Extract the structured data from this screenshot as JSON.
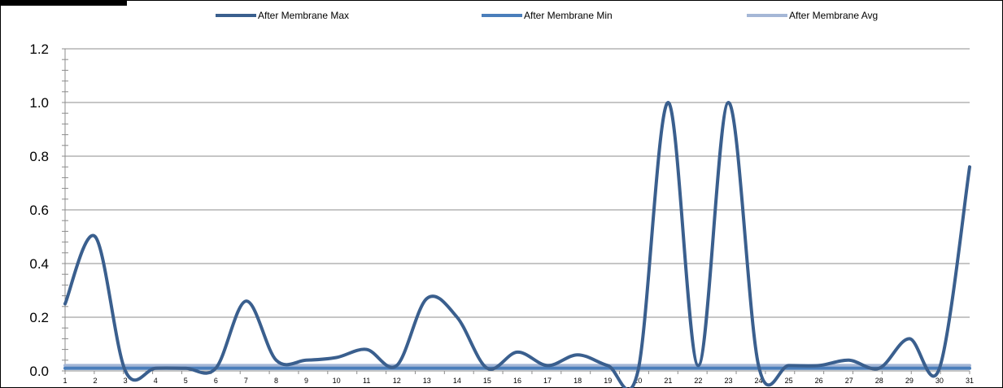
{
  "chart_data": {
    "type": "line",
    "title": "",
    "xlabel": "",
    "ylabel": "",
    "ylim": [
      0,
      1.2
    ],
    "yticks": [
      "0.0",
      "0.2",
      "0.4",
      "0.6",
      "0.8",
      "1.0",
      "1.2"
    ],
    "categories": [
      "1",
      "2",
      "3",
      "4",
      "5",
      "6",
      "7",
      "8",
      "9",
      "10",
      "11",
      "12",
      "13",
      "14",
      "15",
      "16",
      "17",
      "18",
      "19",
      "20",
      "21",
      "22",
      "23",
      "24",
      "25",
      "26",
      "27",
      "28",
      "29",
      "30",
      "31"
    ],
    "grid": true,
    "legend_position": "top",
    "series": [
      {
        "name": "After Membrane Max",
        "color": "#3A5F8E",
        "values": [
          0.25,
          0.5,
          0.0,
          0.01,
          0.01,
          0.01,
          0.26,
          0.04,
          0.04,
          0.05,
          0.08,
          0.02,
          0.27,
          0.2,
          0.01,
          0.07,
          0.02,
          0.06,
          0.02,
          0.0,
          1.0,
          0.02,
          1.0,
          0.02,
          0.02,
          0.02,
          0.04,
          0.01,
          0.12,
          0.01,
          0.76
        ]
      },
      {
        "name": "After Membrane Min",
        "color": "#4A7EBB",
        "values": [
          0.01,
          0.01,
          0.01,
          0.01,
          0.01,
          0.01,
          0.01,
          0.01,
          0.01,
          0.01,
          0.01,
          0.01,
          0.01,
          0.01,
          0.01,
          0.01,
          0.01,
          0.01,
          0.01,
          0.01,
          0.01,
          0.01,
          0.01,
          0.01,
          0.01,
          0.01,
          0.01,
          0.01,
          0.01,
          0.01,
          0.01
        ]
      },
      {
        "name": "After Membrane Avg",
        "color": "#A5B7D6",
        "values": [
          0.02,
          0.02,
          0.02,
          0.02,
          0.02,
          0.02,
          0.02,
          0.02,
          0.02,
          0.02,
          0.02,
          0.02,
          0.02,
          0.02,
          0.02,
          0.02,
          0.02,
          0.02,
          0.02,
          0.02,
          0.02,
          0.02,
          0.02,
          0.02,
          0.02,
          0.02,
          0.02,
          0.02,
          0.02,
          0.02,
          0.02
        ]
      }
    ]
  }
}
